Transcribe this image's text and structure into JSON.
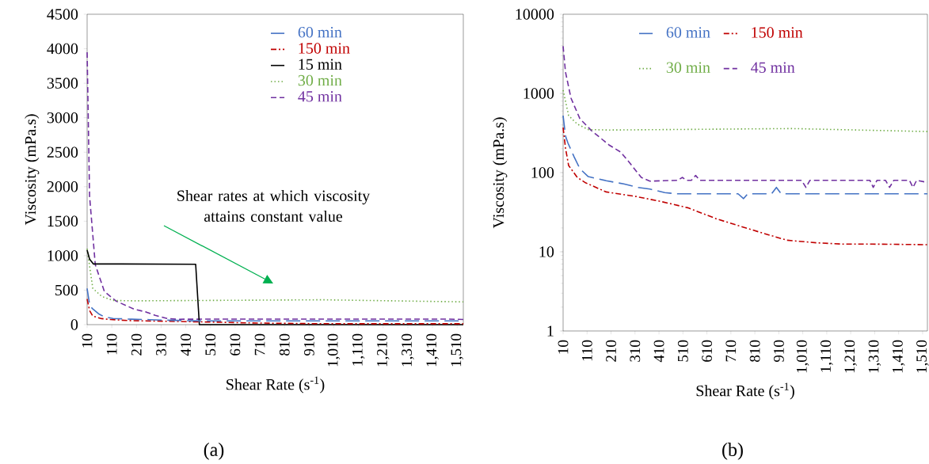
{
  "chart_data": [
    {
      "type": "line",
      "title": "(a)",
      "xlabel": "Shear Rate (s$^{-1}$)",
      "ylabel": "Viscosity (mPa.s)",
      "xlim": [
        10,
        1535
      ],
      "ylim": [
        0,
        4500
      ],
      "xticks": [
        10,
        110,
        210,
        310,
        410,
        510,
        610,
        710,
        810,
        910,
        {
          "value": 1010,
          "label": "1,010"
        },
        {
          "value": 1110,
          "label": "1,110"
        },
        {
          "value": 1210,
          "label": "1,210"
        },
        {
          "value": 1310,
          "label": "1,310"
        },
        {
          "value": 1410,
          "label": "1,410"
        },
        {
          "value": 1510,
          "label": "1,510"
        }
      ],
      "yticks": [
        0,
        500,
        1000,
        1500,
        2000,
        2500,
        3000,
        3500,
        4000,
        4500
      ],
      "legend": "top right",
      "annotations": [
        "Shear rates at which viscosity attains constant value"
      ],
      "series": [
        {
          "name": "60 min",
          "color": "#4472c4",
          "line_style": "longdash",
          "x": [
            10,
            20,
            30,
            56,
            80,
            115,
            190,
            263,
            322,
            372,
            434,
            480,
            763,
            900,
            1535
          ],
          "values": [
            525,
            290,
            237,
            158,
            112,
            89,
            79,
            72,
            65,
            62,
            56,
            54,
            54,
            54,
            54
          ]
        },
        {
          "name": "150 min",
          "color": "#c00000",
          "line_style": "dashdot",
          "x": [
            10,
            20,
            33,
            69,
            105,
            190,
            313,
            421,
            530,
            651,
            750,
            849,
            944,
            1066,
            1178,
            1300,
            1535
          ],
          "values": [
            371,
            204,
            123,
            87,
            74,
            57,
            50,
            43,
            36,
            26,
            21,
            17,
            14,
            13,
            12.5,
            12.5,
            12.3
          ]
        },
        {
          "name": "15 min",
          "color": "#000000",
          "line_style": "solid",
          "x": [
            10,
            20,
            35,
            150,
            450,
            465,
            1535
          ],
          "values": [
            1080,
            950,
            880,
            880,
            875,
            0,
            0
          ]
        },
        {
          "name": "30 min",
          "color": "#70ad47",
          "line_style": "dotted",
          "x": [
            10,
            33,
            69,
            115,
            200,
            964,
            1535
          ],
          "values": [
            1100,
            525,
            410,
            350,
            345,
            360,
            330
          ]
        },
        {
          "name": "45 min",
          "color": "#7030a0",
          "line_style": "dashed",
          "x": [
            10,
            20,
            43,
            80,
            128,
            201,
            250,
            286,
            336,
            372,
            507,
            563,
            1023,
            1304,
            1372,
            1470,
            1535
          ],
          "values": [
            3950,
            1860,
            870,
            480,
            340,
            224,
            182,
            135,
            87,
            78,
            80,
            80,
            80,
            80,
            80,
            80,
            75
          ]
        }
      ]
    },
    {
      "type": "line",
      "title": "(b)",
      "xlabel": "Shear Rate (s$^{-1}$)",
      "ylabel": "Viscosity (mPa.s)",
      "log": "y",
      "xlim": [
        10,
        1530
      ],
      "ylim": [
        1,
        10000
      ],
      "xticks": [
        10,
        110,
        210,
        310,
        410,
        510,
        610,
        710,
        810,
        910,
        {
          "value": 1010,
          "label": "1,010"
        },
        {
          "value": 1110,
          "label": "1,110"
        },
        {
          "value": 1210,
          "label": "1,210"
        },
        {
          "value": 1310,
          "label": "1,310"
        },
        {
          "value": 1410,
          "label": "1,410"
        },
        {
          "value": 1510,
          "label": "1,510"
        }
      ],
      "yticks": [
        1,
        10,
        100,
        1000,
        10000
      ],
      "legend": "top",
      "series": [
        {
          "name": "60 min",
          "color": "#4472c4",
          "line_style": "longdash",
          "x": [
            10,
            20,
            30,
            56,
            80,
            115,
            190,
            263,
            322,
            372,
            434,
            480,
            740,
            763,
            780,
            880,
            900,
            920,
            1530
          ],
          "values": [
            525,
            290,
            237,
            158,
            112,
            89,
            79,
            72,
            65,
            62,
            56,
            54,
            54,
            47,
            54,
            54,
            65,
            54,
            54
          ]
        },
        {
          "name": "150 min",
          "color": "#c00000",
          "line_style": "dashdot",
          "x": [
            10,
            20,
            33,
            69,
            105,
            190,
            313,
            421,
            530,
            651,
            750,
            849,
            944,
            1066,
            1178,
            1300,
            1530
          ],
          "values": [
            371,
            204,
            123,
            87,
            74,
            57,
            50,
            43,
            36,
            26,
            21,
            17,
            14,
            13,
            12.5,
            12.5,
            12.3
          ]
        },
        {
          "name": "30 min",
          "color": "#70ad47",
          "line_style": "dotted",
          "x": [
            10,
            33,
            69,
            115,
            200,
            964,
            1530
          ],
          "values": [
            1100,
            525,
            410,
            350,
            345,
            360,
            330
          ]
        },
        {
          "name": "45 min",
          "color": "#7030a0",
          "line_style": "dashed",
          "x": [
            10,
            20,
            43,
            80,
            128,
            201,
            250,
            286,
            336,
            372,
            490,
            507,
            525,
            545,
            563,
            580,
            1005,
            1023,
            1040,
            1290,
            1304,
            1320,
            1355,
            1372,
            1390,
            1455,
            1470,
            1485,
            1530
          ],
          "values": [
            3950,
            1860,
            870,
            480,
            340,
            224,
            182,
            135,
            87,
            78,
            80,
            87,
            80,
            80,
            92,
            80,
            80,
            65,
            80,
            80,
            65,
            80,
            80,
            65,
            80,
            80,
            65,
            80,
            75
          ]
        }
      ]
    }
  ]
}
